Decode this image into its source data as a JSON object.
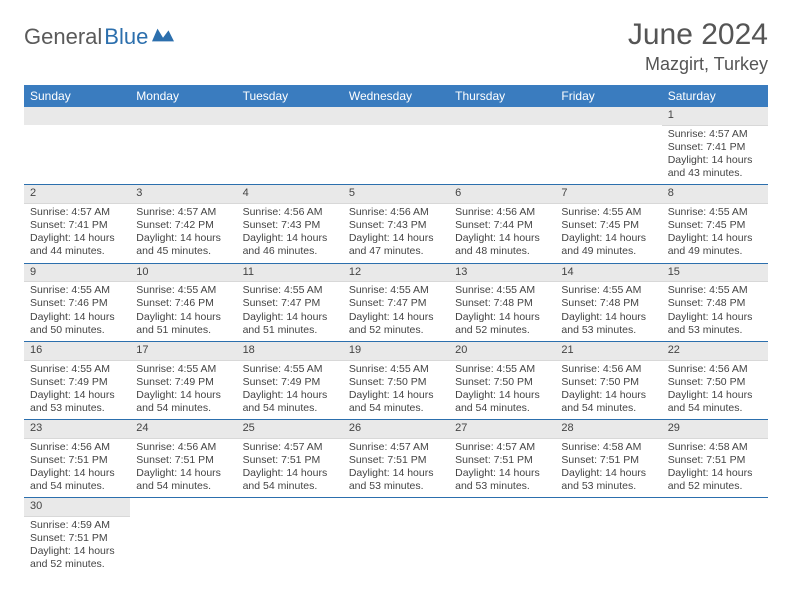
{
  "header": {
    "logo_part1": "General",
    "logo_part2": "Blue",
    "month_title": "June 2024",
    "location": "Mazgirt, Turkey"
  },
  "colors": {
    "header_bg": "#3a7cbf",
    "header_text": "#ffffff",
    "daynum_bg": "#e9e9e9",
    "border": "#2c6fad",
    "logo_gray": "#5a5a5a",
    "logo_blue": "#2c6fad"
  },
  "weekdays": [
    "Sunday",
    "Monday",
    "Tuesday",
    "Wednesday",
    "Thursday",
    "Friday",
    "Saturday"
  ],
  "days": [
    {
      "n": 1,
      "sr": "4:57 AM",
      "ss": "7:41 PM",
      "dh": 14,
      "dm": 43
    },
    {
      "n": 2,
      "sr": "4:57 AM",
      "ss": "7:41 PM",
      "dh": 14,
      "dm": 44
    },
    {
      "n": 3,
      "sr": "4:57 AM",
      "ss": "7:42 PM",
      "dh": 14,
      "dm": 45
    },
    {
      "n": 4,
      "sr": "4:56 AM",
      "ss": "7:43 PM",
      "dh": 14,
      "dm": 46
    },
    {
      "n": 5,
      "sr": "4:56 AM",
      "ss": "7:43 PM",
      "dh": 14,
      "dm": 47
    },
    {
      "n": 6,
      "sr": "4:56 AM",
      "ss": "7:44 PM",
      "dh": 14,
      "dm": 48
    },
    {
      "n": 7,
      "sr": "4:55 AM",
      "ss": "7:45 PM",
      "dh": 14,
      "dm": 49
    },
    {
      "n": 8,
      "sr": "4:55 AM",
      "ss": "7:45 PM",
      "dh": 14,
      "dm": 49
    },
    {
      "n": 9,
      "sr": "4:55 AM",
      "ss": "7:46 PM",
      "dh": 14,
      "dm": 50
    },
    {
      "n": 10,
      "sr": "4:55 AM",
      "ss": "7:46 PM",
      "dh": 14,
      "dm": 51
    },
    {
      "n": 11,
      "sr": "4:55 AM",
      "ss": "7:47 PM",
      "dh": 14,
      "dm": 51
    },
    {
      "n": 12,
      "sr": "4:55 AM",
      "ss": "7:47 PM",
      "dh": 14,
      "dm": 52
    },
    {
      "n": 13,
      "sr": "4:55 AM",
      "ss": "7:48 PM",
      "dh": 14,
      "dm": 52
    },
    {
      "n": 14,
      "sr": "4:55 AM",
      "ss": "7:48 PM",
      "dh": 14,
      "dm": 53
    },
    {
      "n": 15,
      "sr": "4:55 AM",
      "ss": "7:48 PM",
      "dh": 14,
      "dm": 53
    },
    {
      "n": 16,
      "sr": "4:55 AM",
      "ss": "7:49 PM",
      "dh": 14,
      "dm": 53
    },
    {
      "n": 17,
      "sr": "4:55 AM",
      "ss": "7:49 PM",
      "dh": 14,
      "dm": 54
    },
    {
      "n": 18,
      "sr": "4:55 AM",
      "ss": "7:49 PM",
      "dh": 14,
      "dm": 54
    },
    {
      "n": 19,
      "sr": "4:55 AM",
      "ss": "7:50 PM",
      "dh": 14,
      "dm": 54
    },
    {
      "n": 20,
      "sr": "4:55 AM",
      "ss": "7:50 PM",
      "dh": 14,
      "dm": 54
    },
    {
      "n": 21,
      "sr": "4:56 AM",
      "ss": "7:50 PM",
      "dh": 14,
      "dm": 54
    },
    {
      "n": 22,
      "sr": "4:56 AM",
      "ss": "7:50 PM",
      "dh": 14,
      "dm": 54
    },
    {
      "n": 23,
      "sr": "4:56 AM",
      "ss": "7:51 PM",
      "dh": 14,
      "dm": 54
    },
    {
      "n": 24,
      "sr": "4:56 AM",
      "ss": "7:51 PM",
      "dh": 14,
      "dm": 54
    },
    {
      "n": 25,
      "sr": "4:57 AM",
      "ss": "7:51 PM",
      "dh": 14,
      "dm": 54
    },
    {
      "n": 26,
      "sr": "4:57 AM",
      "ss": "7:51 PM",
      "dh": 14,
      "dm": 53
    },
    {
      "n": 27,
      "sr": "4:57 AM",
      "ss": "7:51 PM",
      "dh": 14,
      "dm": 53
    },
    {
      "n": 28,
      "sr": "4:58 AM",
      "ss": "7:51 PM",
      "dh": 14,
      "dm": 53
    },
    {
      "n": 29,
      "sr": "4:58 AM",
      "ss": "7:51 PM",
      "dh": 14,
      "dm": 52
    },
    {
      "n": 30,
      "sr": "4:59 AM",
      "ss": "7:51 PM",
      "dh": 14,
      "dm": 52
    }
  ],
  "first_weekday_index": 6,
  "labels": {
    "sunrise": "Sunrise:",
    "sunset": "Sunset:",
    "daylight_prefix": "Daylight:",
    "hours_word": "hours",
    "and_word": "and",
    "minutes_word": "minutes."
  }
}
